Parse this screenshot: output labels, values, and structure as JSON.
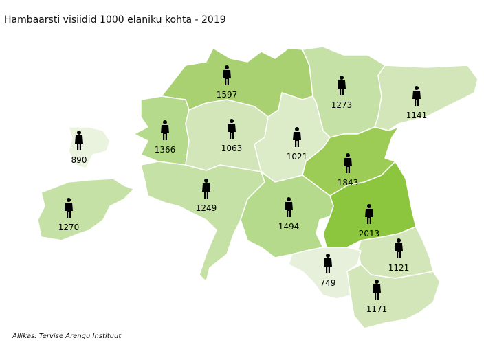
{
  "title": "Hambaarsti visiidid 1000 elaniku kohta - 2019",
  "source": "Allikas: Tervise Arengu Instituut",
  "regions": [
    {
      "value": 1597,
      "color": "#a9d172"
    },
    {
      "value": 1273,
      "color": "#c6e1a6"
    },
    {
      "value": 1141,
      "color": "#d2e6ba"
    },
    {
      "value": 1366,
      "color": "#b6da8c"
    },
    {
      "value": 1063,
      "color": "#d2e6ba"
    },
    {
      "value": 1021,
      "color": "#dcecc9"
    },
    {
      "value": 1843,
      "color": "#9ccc55"
    },
    {
      "value": 2013,
      "color": "#8cc63f"
    },
    {
      "value": 890,
      "color": "#e9f3de"
    },
    {
      "value": 1270,
      "color": "#c6e1a6"
    },
    {
      "value": 1249,
      "color": "#c6e1a6"
    },
    {
      "value": 1494,
      "color": "#b6da8c"
    },
    {
      "value": 1121,
      "color": "#d2e6ba"
    },
    {
      "value": 749,
      "color": "#e6f0da"
    },
    {
      "value": 1171,
      "color": "#d2e6ba"
    }
  ]
}
